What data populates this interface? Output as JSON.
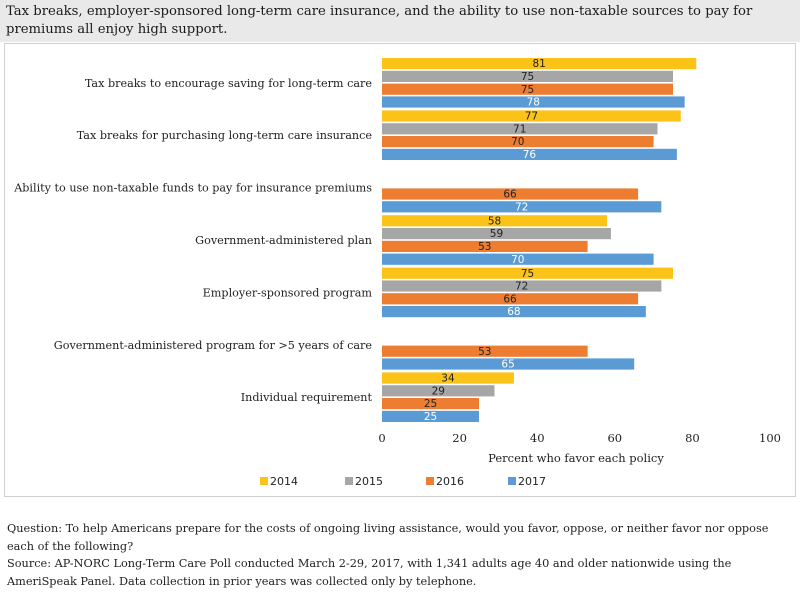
{
  "title": "Tax breaks, employer-sponsored long-term care insurance, and the ability to use non-taxable sources to pay for premiums all enjoy high support.",
  "notes": {
    "question": "Question: To help Americans prepare for the costs of ongoing living assistance, would you favor, oppose, or neither favor nor oppose each of the following?",
    "source": "Source: AP-NORC Long-Term Care Poll conducted March 2-29, 2017, with 1,341 adults age 40 and older nationwide using the AmeriSpeak Panel. Data collection in prior years was collected only by telephone."
  },
  "chart_data": {
    "type": "bar",
    "orientation": "horizontal",
    "title": "",
    "xlabel": "Percent who favor each policy",
    "ylabel": "",
    "xlim": [
      0,
      100
    ],
    "xticks": [
      0,
      20,
      40,
      60,
      80,
      100
    ],
    "grid": false,
    "legend_position": "bottom",
    "categories": [
      "Tax breaks to encourage saving for long-term care",
      "Tax breaks for purchasing long-term care insurance",
      "Ability to use non-taxable funds to pay for insurance premiums",
      "Government-administered plan",
      "Employer-sponsored program",
      "Government-administered program for >5 years of care",
      "Individual requirement"
    ],
    "series": [
      {
        "name": "2014",
        "color": "#fbc217",
        "label_color": "#222222",
        "values": [
          81,
          77,
          null,
          58,
          75,
          null,
          34
        ]
      },
      {
        "name": "2015",
        "color": "#a6a6a6",
        "label_color": "#222222",
        "values": [
          75,
          71,
          null,
          59,
          72,
          null,
          29
        ]
      },
      {
        "name": "2016",
        "color": "#ed7d31",
        "label_color": "#222222",
        "values": [
          75,
          70,
          66,
          53,
          66,
          53,
          25
        ]
      },
      {
        "name": "2017",
        "color": "#5b9bd5",
        "label_color": "#ffffff",
        "values": [
          78,
          76,
          72,
          70,
          68,
          65,
          25
        ]
      }
    ]
  }
}
